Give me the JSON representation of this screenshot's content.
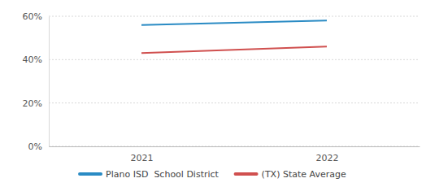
{
  "chart_data": {
    "type": "line",
    "categories": [
      "2021",
      "2022"
    ],
    "series": [
      {
        "name": "Plano ISD  School District",
        "color": "#2a8bc4",
        "values": [
          56,
          58
        ]
      },
      {
        "name": "(TX) State Average",
        "color": "#d0504f",
        "values": [
          43,
          46
        ]
      }
    ],
    "ylim": [
      0,
      60
    ],
    "yticks": [
      {
        "value": 0,
        "label": "0%"
      },
      {
        "value": 20,
        "label": "20%"
      },
      {
        "value": 40,
        "label": "40%"
      },
      {
        "value": 60,
        "label": "60%"
      }
    ],
    "grid": true,
    "legend": "bottom"
  }
}
